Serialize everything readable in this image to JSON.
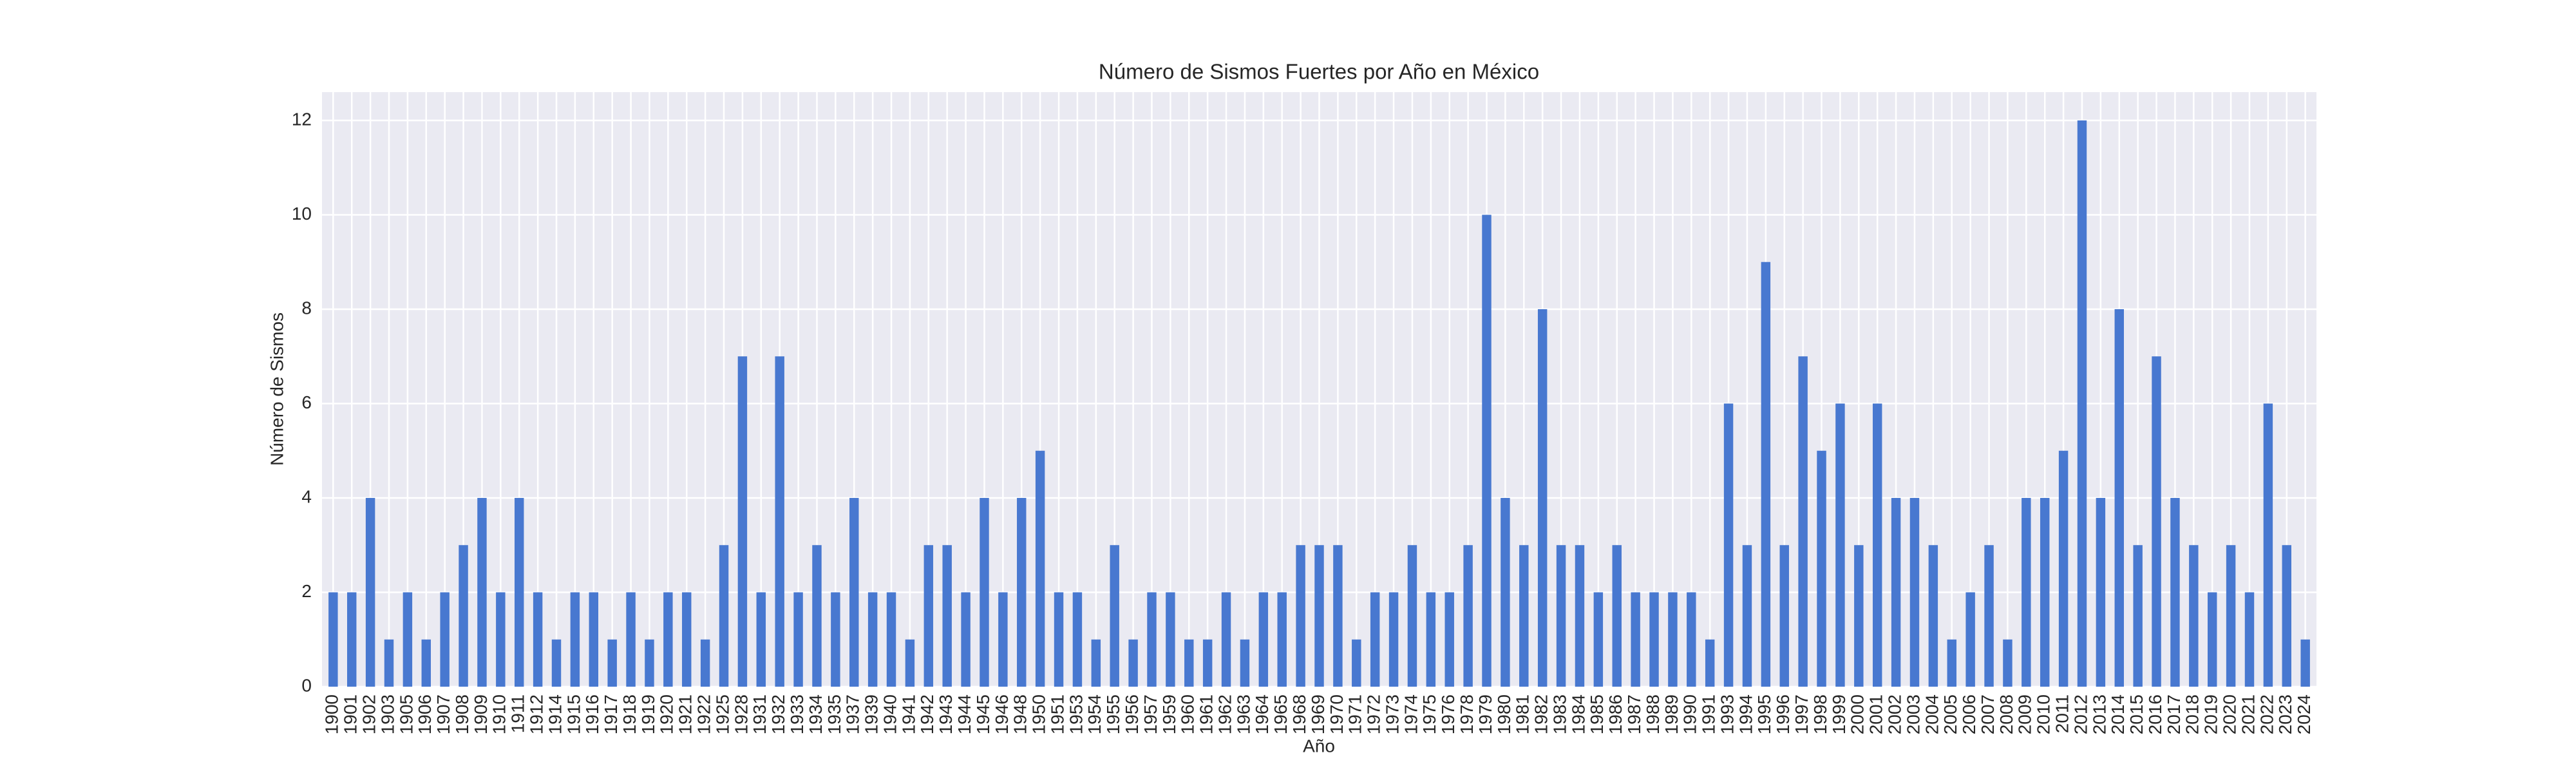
{
  "chart_data": {
    "type": "bar",
    "title": "Número de Sismos Fuertes por Año en México",
    "x_label": "Año",
    "y_label": "Número de Sismos",
    "categories": [
      "1900",
      "1901",
      "1902",
      "1903",
      "1905",
      "1906",
      "1907",
      "1908",
      "1909",
      "1910",
      "1911",
      "1912",
      "1914",
      "1915",
      "1916",
      "1917",
      "1918",
      "1919",
      "1920",
      "1921",
      "1922",
      "1925",
      "1928",
      "1931",
      "1932",
      "1933",
      "1934",
      "1935",
      "1937",
      "1939",
      "1940",
      "1941",
      "1942",
      "1943",
      "1944",
      "1945",
      "1946",
      "1948",
      "1950",
      "1951",
      "1953",
      "1954",
      "1955",
      "1956",
      "1957",
      "1959",
      "1960",
      "1961",
      "1962",
      "1963",
      "1964",
      "1965",
      "1968",
      "1969",
      "1970",
      "1971",
      "1972",
      "1973",
      "1974",
      "1975",
      "1976",
      "1978",
      "1979",
      "1980",
      "1981",
      "1982",
      "1983",
      "1984",
      "1985",
      "1986",
      "1987",
      "1988",
      "1989",
      "1990",
      "1991",
      "1993",
      "1994",
      "1995",
      "1996",
      "1997",
      "1998",
      "1999",
      "2000",
      "2001",
      "2002",
      "2003",
      "2004",
      "2005",
      "2006",
      "2007",
      "2008",
      "2009",
      "2010",
      "2011",
      "2012",
      "2013",
      "2014",
      "2015",
      "2016",
      "2017",
      "2018",
      "2019",
      "2020",
      "2021",
      "2022",
      "2023",
      "2024"
    ],
    "values": [
      2,
      2,
      4,
      1,
      2,
      1,
      2,
      3,
      4,
      2,
      4,
      2,
      1,
      2,
      2,
      1,
      2,
      1,
      2,
      2,
      1,
      3,
      7,
      2,
      7,
      2,
      3,
      2,
      4,
      2,
      2,
      1,
      3,
      3,
      2,
      4,
      2,
      4,
      5,
      2,
      2,
      1,
      3,
      1,
      2,
      2,
      1,
      1,
      2,
      1,
      2,
      2,
      3,
      3,
      3,
      1,
      2,
      2,
      3,
      2,
      2,
      3,
      10,
      4,
      3,
      8,
      3,
      3,
      2,
      3,
      2,
      2,
      2,
      2,
      1,
      6,
      3,
      9,
      3,
      7,
      5,
      6,
      3,
      6,
      4,
      4,
      3,
      1,
      2,
      3,
      1,
      4,
      4,
      5,
      12,
      4,
      8,
      3,
      7,
      4,
      3,
      2,
      3,
      2,
      6,
      3,
      1
    ],
    "color": "#4878d0",
    "ylim": [
      0,
      12.6
    ],
    "yticks": [
      0,
      2,
      4,
      6,
      8,
      10,
      12
    ],
    "grid": true
  }
}
